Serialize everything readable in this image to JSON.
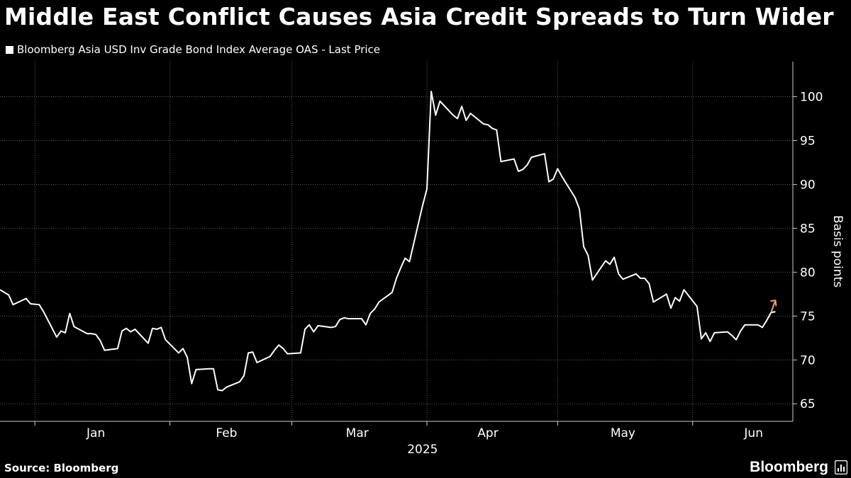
{
  "header": {
    "title": "Middle East Conflict Causes Asia Credit Spreads to Turn Wider"
  },
  "footer": {
    "source": "Source: Bloomberg",
    "brand": "Bloomberg"
  },
  "colors": {
    "background": "#000000",
    "line": "#ffffff",
    "arrow": "#f0a060",
    "grid": "#5a5a5a"
  },
  "icons": {
    "brand_icon": "bloomberg-terminal-icon",
    "end_arrow": "up-right-arrow-icon"
  },
  "chart_data": {
    "type": "line",
    "title": "Middle East Conflict Causes Asia Credit Spreads to Turn Wider",
    "ylabel": "Basis points",
    "xlabel": "2025",
    "ylim": [
      63,
      104
    ],
    "x_start": "2024-12-24",
    "x_end": "2025-06-24",
    "yticks": [
      65,
      70,
      75,
      80,
      85,
      90,
      95,
      100
    ],
    "xticks": [
      {
        "label": "Jan",
        "date": "2025-01-15"
      },
      {
        "label": "Feb",
        "date": "2025-02-14"
      },
      {
        "label": "Mar",
        "date": "2025-03-16"
      },
      {
        "label": "Apr",
        "date": "2025-04-15"
      },
      {
        "label": "May",
        "date": "2025-05-16"
      },
      {
        "label": "Jun",
        "date": "2025-06-15"
      }
    ],
    "xgrid": [
      "2025-01-01",
      "2025-02-01",
      "2025-03-01",
      "2025-04-01",
      "2025-05-01",
      "2025-06-01"
    ],
    "grid": true,
    "arrow_direction": "up",
    "series": [
      {
        "name": "Bloomberg Asia USD Inv Grade Bond Index Average OAS - Last Price",
        "x": [
          "2024-12-24",
          "2024-12-26",
          "2024-12-27",
          "2024-12-30",
          "2024-12-31",
          "2025-01-02",
          "2025-01-03",
          "2025-01-06",
          "2025-01-07",
          "2025-01-08",
          "2025-01-09",
          "2025-01-10",
          "2025-01-13",
          "2025-01-14",
          "2025-01-15",
          "2025-01-16",
          "2025-01-17",
          "2025-01-20",
          "2025-01-21",
          "2025-01-22",
          "2025-01-23",
          "2025-01-24",
          "2025-01-27",
          "2025-01-28",
          "2025-01-29",
          "2025-01-30",
          "2025-01-31",
          "2025-02-03",
          "2025-02-04",
          "2025-02-05",
          "2025-02-06",
          "2025-02-07",
          "2025-02-10",
          "2025-02-11",
          "2025-02-12",
          "2025-02-13",
          "2025-02-14",
          "2025-02-17",
          "2025-02-18",
          "2025-02-19",
          "2025-02-20",
          "2025-02-21",
          "2025-02-24",
          "2025-02-25",
          "2025-02-26",
          "2025-02-27",
          "2025-02-28",
          "2025-03-03",
          "2025-03-04",
          "2025-03-05",
          "2025-03-06",
          "2025-03-07",
          "2025-03-10",
          "2025-03-11",
          "2025-03-12",
          "2025-03-13",
          "2025-03-14",
          "2025-03-17",
          "2025-03-18",
          "2025-03-19",
          "2025-03-20",
          "2025-03-21",
          "2025-03-24",
          "2025-03-25",
          "2025-03-26",
          "2025-03-27",
          "2025-03-28",
          "2025-03-31",
          "2025-04-01",
          "2025-04-02",
          "2025-04-03",
          "2025-04-04",
          "2025-04-07",
          "2025-04-08",
          "2025-04-09",
          "2025-04-10",
          "2025-04-11",
          "2025-04-14",
          "2025-04-15",
          "2025-04-16",
          "2025-04-17",
          "2025-04-18",
          "2025-04-21",
          "2025-04-22",
          "2025-04-23",
          "2025-04-24",
          "2025-04-25",
          "2025-04-28",
          "2025-04-29",
          "2025-04-30",
          "2025-05-01",
          "2025-05-02",
          "2025-05-05",
          "2025-05-06",
          "2025-05-07",
          "2025-05-08",
          "2025-05-09",
          "2025-05-12",
          "2025-05-13",
          "2025-05-14",
          "2025-05-15",
          "2025-05-16",
          "2025-05-19",
          "2025-05-20",
          "2025-05-21",
          "2025-05-22",
          "2025-05-23",
          "2025-05-26",
          "2025-05-27",
          "2025-05-28",
          "2025-05-29",
          "2025-05-30",
          "2025-06-02",
          "2025-06-03",
          "2025-06-04",
          "2025-06-05",
          "2025-06-06",
          "2025-06-09",
          "2025-06-10",
          "2025-06-11",
          "2025-06-12",
          "2025-06-13",
          "2025-06-16",
          "2025-06-17",
          "2025-06-18",
          "2025-06-19",
          "2025-06-20"
        ],
        "values": [
          78.0,
          77.4,
          76.3,
          77.0,
          76.4,
          76.3,
          75.5,
          72.6,
          73.3,
          73.1,
          75.3,
          73.8,
          73.0,
          73.0,
          72.9,
          72.2,
          71.1,
          71.3,
          73.3,
          73.6,
          73.2,
          73.5,
          71.9,
          73.6,
          73.5,
          73.7,
          72.3,
          70.8,
          71.3,
          70.3,
          67.3,
          68.9,
          69.0,
          69.0,
          66.6,
          66.5,
          66.9,
          67.5,
          68.2,
          70.8,
          70.9,
          69.7,
          70.4,
          71.1,
          71.7,
          71.3,
          70.7,
          70.8,
          73.5,
          74.0,
          73.2,
          73.9,
          73.7,
          73.8,
          74.6,
          74.8,
          74.7,
          74.7,
          74.0,
          75.3,
          75.8,
          76.6,
          77.7,
          79.3,
          80.5,
          81.6,
          81.2,
          87.6,
          89.5,
          100.6,
          97.9,
          99.5,
          97.9,
          97.5,
          98.9,
          97.3,
          98.1,
          96.9,
          96.8,
          96.4,
          96.2,
          92.6,
          92.9,
          91.5,
          91.7,
          92.2,
          93.1,
          93.5,
          90.3,
          90.6,
          91.8,
          90.9,
          88.5,
          87.2,
          82.9,
          81.9,
          79.1,
          81.3,
          80.9,
          81.7,
          79.8,
          79.2,
          79.8,
          79.3,
          79.3,
          78.7,
          76.6,
          77.5,
          75.9,
          77.1,
          76.7,
          78.0,
          76.1,
          72.4,
          73.1,
          72.1,
          73.1,
          73.2,
          72.8,
          72.3,
          73.3,
          74.0,
          74.0,
          73.7,
          74.5,
          75.4,
          75.5
        ]
      }
    ]
  }
}
